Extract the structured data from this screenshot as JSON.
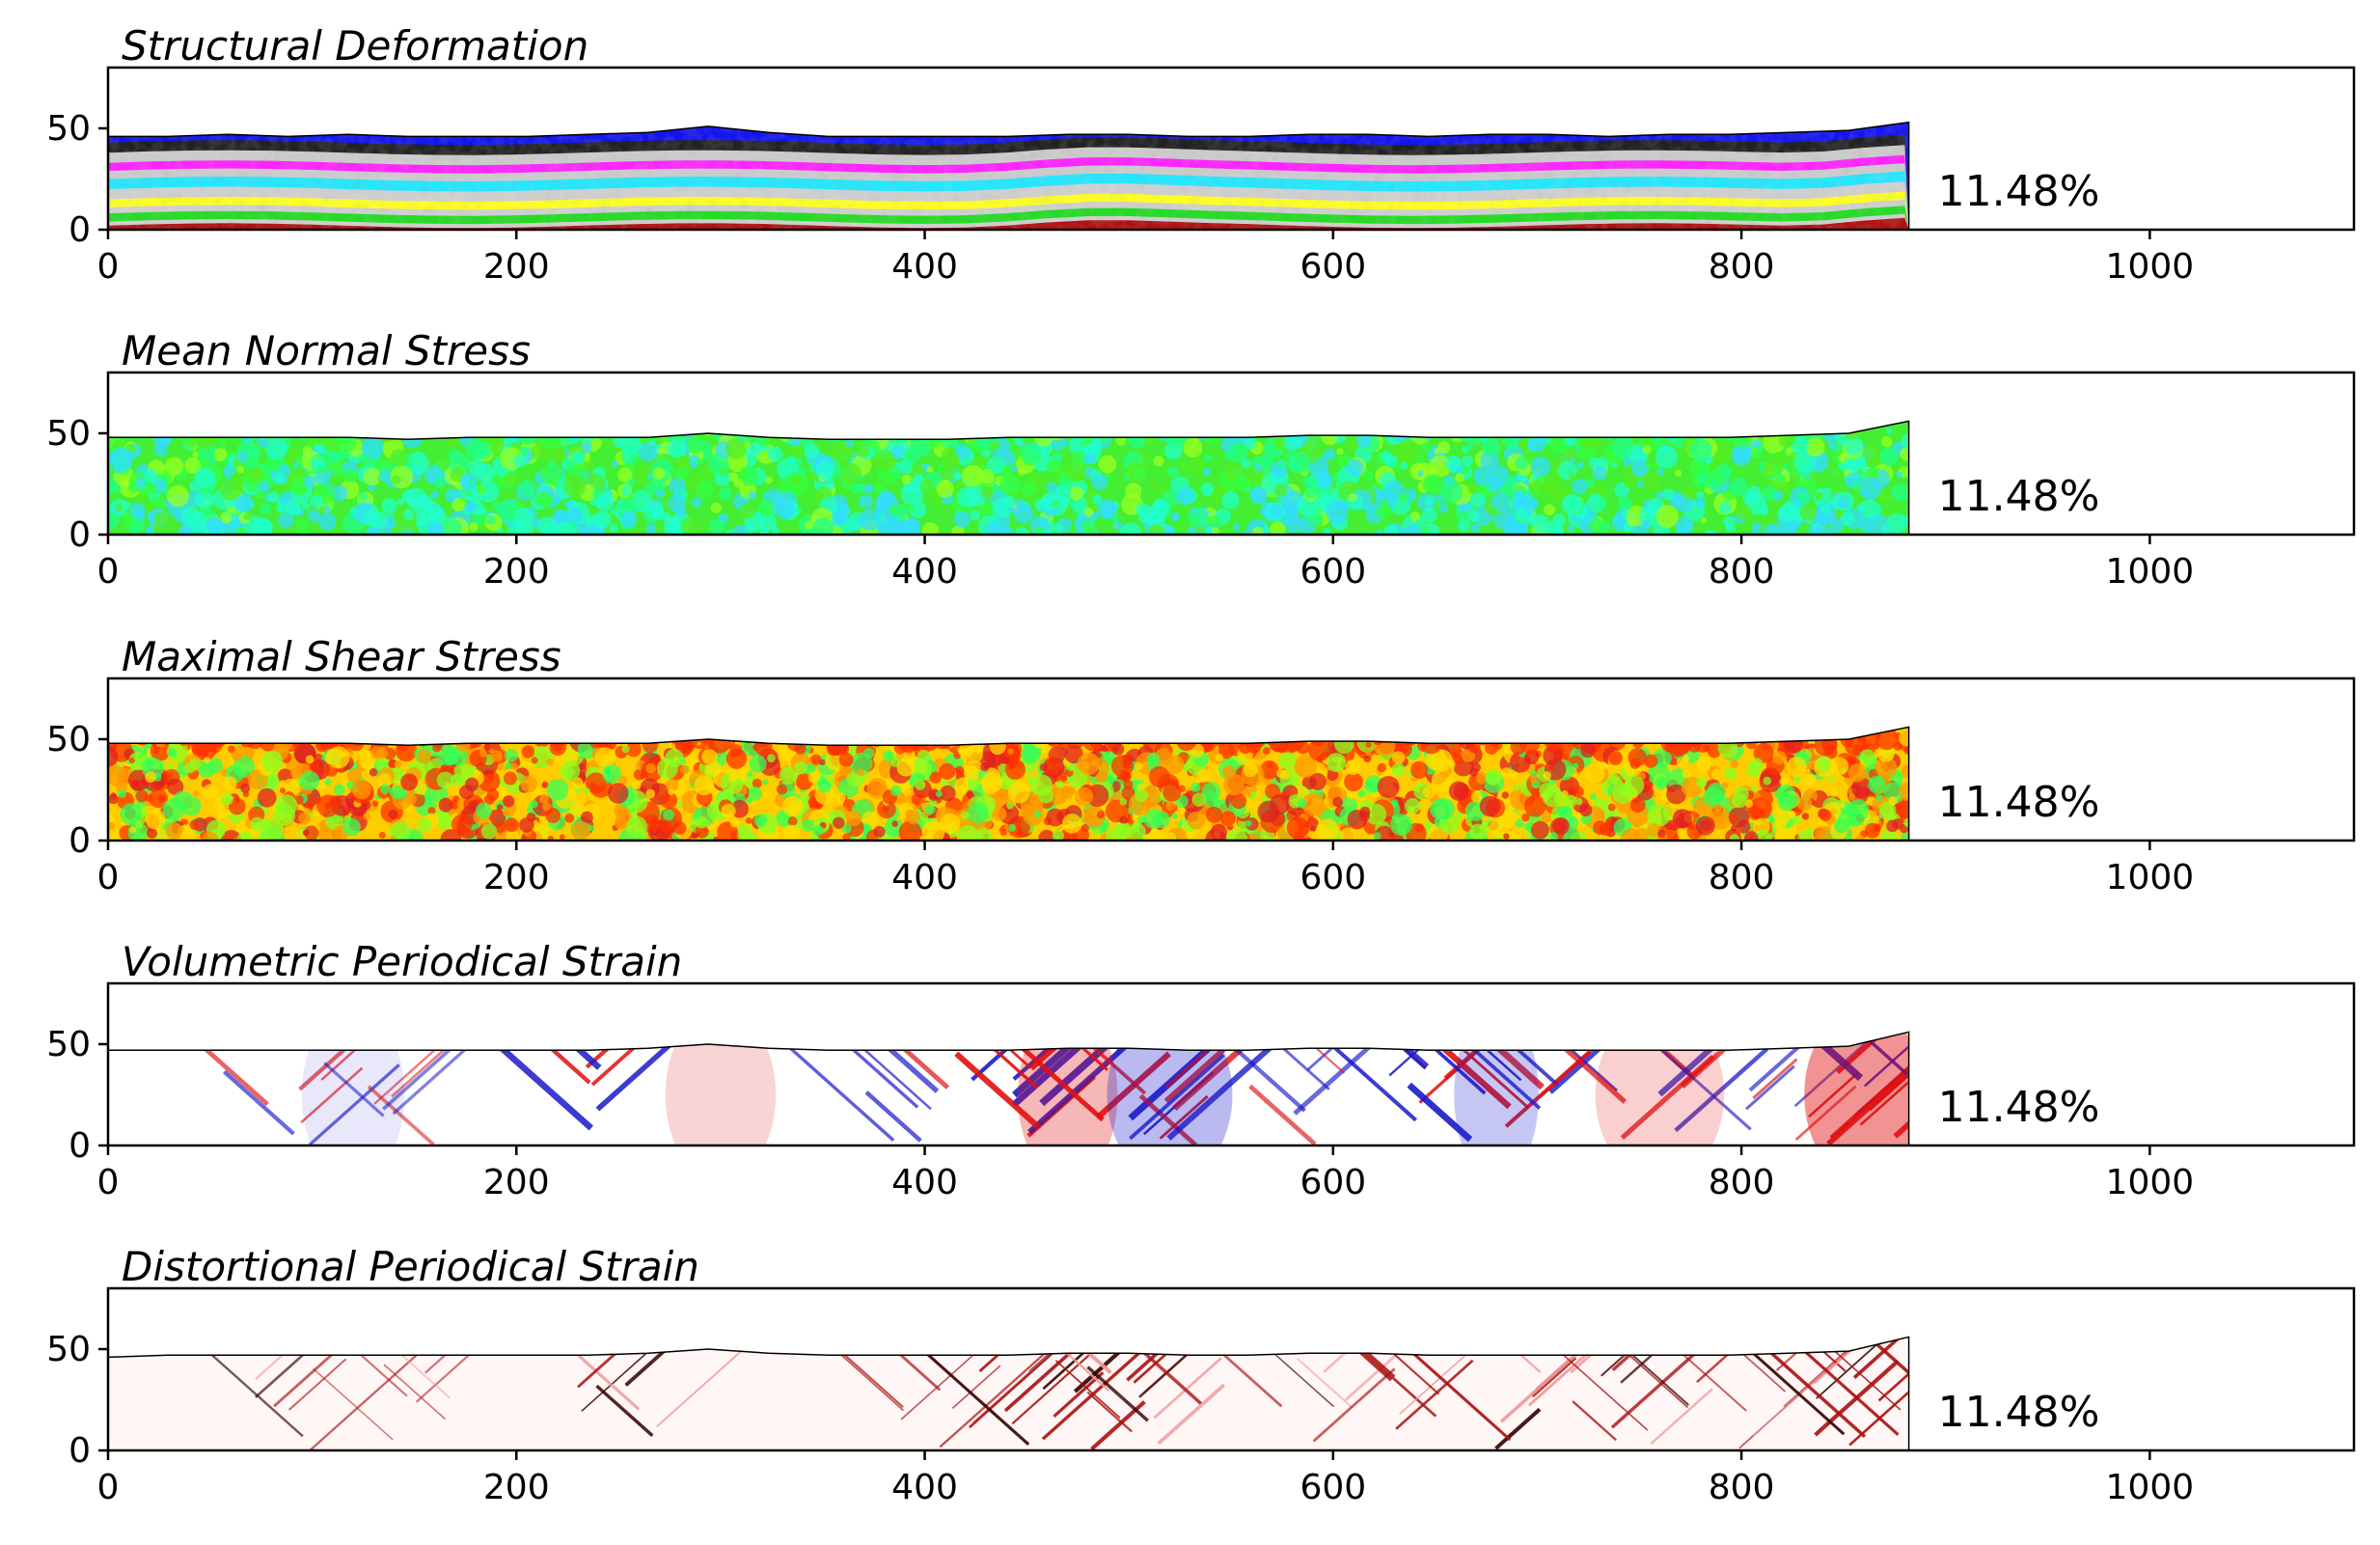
{
  "chart_data": [
    {
      "type": "heatmap",
      "title": "Structural Deformation",
      "annotation": "11.48%",
      "x_ticks": [
        0,
        200,
        400,
        600,
        800,
        1000
      ],
      "y_ticks": [
        0,
        50
      ],
      "xlim": [
        0,
        1100
      ],
      "ylim": [
        0,
        80
      ],
      "material_extent_x": [
        0,
        882
      ],
      "surface_heights": [
        46,
        46,
        47,
        46,
        47,
        46,
        46,
        46,
        47,
        48,
        51,
        48,
        46,
        46,
        46,
        46,
        47,
        47,
        46,
        46,
        47,
        47,
        46,
        47,
        47,
        46,
        47,
        47,
        48,
        49,
        53
      ],
      "surface_step_x": 29.4,
      "layer_colors": [
        "#1414f0",
        "#222222",
        "#cccccc",
        "#ff22ff",
        "#22e8ff",
        "#d0d0d0",
        "#ffff22",
        "#22dd22",
        "#b01010"
      ]
    },
    {
      "type": "heatmap",
      "title": "Mean Normal Stress",
      "annotation": "11.48%",
      "x_ticks": [
        0,
        200,
        400,
        600,
        800,
        1000
      ],
      "y_ticks": [
        0,
        50
      ],
      "xlim": [
        0,
        1100
      ],
      "ylim": [
        0,
        80
      ],
      "material_extent_x": [
        0,
        882
      ],
      "surface_heights": [
        48,
        48,
        48,
        48,
        48,
        47,
        48,
        48,
        48,
        48,
        50,
        48,
        47,
        47,
        47,
        48,
        48,
        48,
        48,
        48,
        49,
        49,
        48,
        48,
        48,
        48,
        48,
        48,
        49,
        50,
        56
      ],
      "surface_step_x": 29.4,
      "palette": [
        "#55ee22",
        "#33ff44",
        "#22ff88",
        "#22ffcc",
        "#33ddff",
        "#99ff22"
      ]
    },
    {
      "type": "heatmap",
      "title": "Maximal Shear Stress",
      "annotation": "11.48%",
      "x_ticks": [
        0,
        200,
        400,
        600,
        800,
        1000
      ],
      "y_ticks": [
        0,
        50
      ],
      "xlim": [
        0,
        1100
      ],
      "ylim": [
        0,
        80
      ],
      "material_extent_x": [
        0,
        882
      ],
      "surface_heights": [
        48,
        48,
        48,
        48,
        48,
        47,
        48,
        48,
        48,
        48,
        50,
        48,
        47,
        47,
        47,
        48,
        48,
        48,
        48,
        48,
        49,
        49,
        48,
        48,
        48,
        48,
        48,
        48,
        49,
        50,
        56
      ],
      "surface_step_x": 29.4,
      "palette": [
        "#ffdd00",
        "#ff9900",
        "#ff3300",
        "#e02020",
        "#88ff22",
        "#33ff55"
      ]
    },
    {
      "type": "heatmap",
      "title": "Volumetric Periodical Strain",
      "annotation": "11.48%",
      "x_ticks": [
        0,
        200,
        400,
        600,
        800,
        1000
      ],
      "y_ticks": [
        0,
        50
      ],
      "xlim": [
        0,
        1100
      ],
      "ylim": [
        0,
        80
      ],
      "material_extent_x": [
        0,
        882
      ],
      "surface_heights": [
        47,
        47,
        47,
        47,
        47,
        47,
        47,
        47,
        47,
        48,
        50,
        48,
        47,
        47,
        47,
        47,
        48,
        48,
        47,
        47,
        48,
        48,
        47,
        47,
        47,
        47,
        47,
        47,
        48,
        49,
        56
      ],
      "surface_step_x": 29.4,
      "palette": [
        "#ffffff",
        "#e01010",
        "#1a1acc"
      ]
    },
    {
      "type": "heatmap",
      "title": "Distortional Periodical Strain",
      "annotation": "11.48%",
      "x_ticks": [
        0,
        200,
        400,
        600,
        800,
        1000
      ],
      "y_ticks": [
        0,
        50
      ],
      "xlim": [
        0,
        1100
      ],
      "ylim": [
        0,
        80
      ],
      "material_extent_x": [
        0,
        882
      ],
      "surface_heights": [
        46,
        47,
        47,
        47,
        47,
        47,
        47,
        47,
        47,
        48,
        50,
        48,
        47,
        47,
        47,
        47,
        48,
        48,
        47,
        47,
        48,
        48,
        47,
        47,
        47,
        47,
        47,
        47,
        48,
        49,
        56
      ],
      "surface_step_x": 29.4,
      "palette": [
        "#fff6f6",
        "#ee9999",
        "#aa1111",
        "#330000"
      ]
    }
  ]
}
